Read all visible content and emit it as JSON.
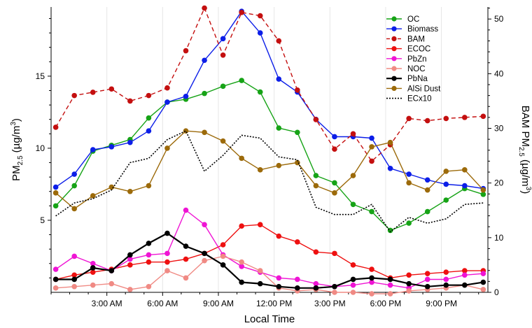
{
  "chart_data": {
    "type": "line",
    "xlabel": "Local Time",
    "ylabel_left": "PM2.5 (µg/m3)",
    "ylabel_right": "BAM PM2.5 (µg/m3)",
    "ylabel_left_parts": [
      "PM",
      "2.5",
      " (µg/m",
      "3",
      ")"
    ],
    "ylabel_right_parts": [
      "BAM PM",
      "2.5",
      " (µg/m",
      "3",
      ")"
    ],
    "xlim": [
      0,
      23.5
    ],
    "ylim_left": [
      0,
      19.8
    ],
    "ylim_right": [
      0,
      52.2
    ],
    "x_ticks": [
      3,
      6,
      9,
      12,
      15,
      18,
      21
    ],
    "x_tick_labels": [
      "3:00 AM",
      "6:00 AM",
      "9:00 AM",
      "12:00 PM",
      "3:00 PM",
      "6:00 PM",
      "9:00 PM"
    ],
    "y_ticks_left": [
      5,
      10,
      15
    ],
    "y_ticks_right": [
      0,
      10,
      20,
      30,
      40,
      50
    ],
    "x_grid": true,
    "legend_position": "top-right",
    "x": [
      0.25,
      1.25,
      2.25,
      3.25,
      4.25,
      5.25,
      6.25,
      7.25,
      8.25,
      9.25,
      10.25,
      11.25,
      12.25,
      13.25,
      14.25,
      15.25,
      16.25,
      17.25,
      18.25,
      19.25,
      20.25,
      21.25,
      22.25,
      23.25
    ],
    "series": [
      {
        "name": "OC",
        "color": "#16a316",
        "style": "solid-markers",
        "axis": "left",
        "values": [
          6.0,
          7.4,
          9.8,
          10.2,
          10.6,
          12.1,
          13.2,
          13.4,
          13.8,
          14.3,
          14.7,
          13.9,
          11.4,
          11.1,
          8.1,
          7.6,
          6.1,
          5.6,
          4.3,
          4.8,
          5.6,
          6.4,
          7.2,
          6.8
        ]
      },
      {
        "name": "Biomass",
        "color": "#0c1ee8",
        "style": "solid-markers",
        "axis": "left",
        "values": [
          7.3,
          8.2,
          9.9,
          10.1,
          10.4,
          11.2,
          13.2,
          13.6,
          16.1,
          17.6,
          19.5,
          18.0,
          14.8,
          13.9,
          12.0,
          10.8,
          10.8,
          10.7,
          8.6,
          8.2,
          7.8,
          7.5,
          7.4,
          7.2
        ]
      },
      {
        "name": "BAM",
        "color": "#c40f0f",
        "style": "dashed-markers",
        "axis": "right",
        "values": [
          30.2,
          36.0,
          36.6,
          37.2,
          35.0,
          36.0,
          37.4,
          44.2,
          52.0,
          43.4,
          51.2,
          50.6,
          46.0,
          37.0,
          31.6,
          26.2,
          29.0,
          24.0,
          27.0,
          31.8,
          31.4,
          31.8,
          32.0,
          32.2
        ]
      },
      {
        "name": "ECOC",
        "color": "#ee1010",
        "style": "solid-markers",
        "axis": "left",
        "values": [
          0.9,
          1.2,
          1.4,
          1.6,
          1.9,
          2.1,
          2.1,
          2.3,
          2.7,
          3.3,
          4.6,
          4.7,
          3.9,
          3.5,
          2.8,
          2.7,
          1.9,
          1.6,
          1.0,
          1.2,
          1.3,
          1.4,
          1.5,
          1.5
        ]
      },
      {
        "name": "PbZn",
        "color": "#ef14d4",
        "style": "solid-markers",
        "axis": "left",
        "values": [
          1.6,
          2.5,
          2.0,
          1.5,
          2.3,
          2.6,
          2.7,
          5.7,
          4.7,
          2.6,
          1.8,
          1.4,
          1.0,
          0.9,
          0.6,
          0.4,
          0.5,
          0.7,
          0.5,
          0.3,
          0.9,
          0.9,
          1.2,
          1.3
        ]
      },
      {
        "name": "NOC",
        "color": "#f08a84",
        "style": "solid-markers",
        "axis": "left",
        "values": [
          0.3,
          0.4,
          0.5,
          0.6,
          0.2,
          0.4,
          1.5,
          1.0,
          2.2,
          2.5,
          2.1,
          1.5,
          0.3,
          0.1,
          0.2,
          0.0,
          0.0,
          -0.1,
          -0.1,
          0.1,
          0.2,
          0.3,
          0.5,
          0.2
        ]
      },
      {
        "name": "PbNa",
        "color": "#000000",
        "style": "solid-markers",
        "axis": "left",
        "values": [
          0.9,
          0.9,
          1.7,
          1.5,
          2.6,
          3.4,
          4.1,
          3.2,
          2.7,
          1.9,
          0.7,
          0.6,
          0.4,
          0.3,
          0.3,
          0.4,
          0.9,
          1.0,
          0.9,
          0.6,
          0.4,
          0.5,
          0.5,
          0.7
        ]
      },
      {
        "name": "AlSi Dust",
        "color": "#9c6a0a",
        "style": "solid-markers",
        "axis": "left",
        "values": [
          6.9,
          5.8,
          6.7,
          7.3,
          7.0,
          7.4,
          10.0,
          11.2,
          11.1,
          10.5,
          9.3,
          8.5,
          8.8,
          9.0,
          7.4,
          6.9,
          8.1,
          10.1,
          10.4,
          7.6,
          7.1,
          8.4,
          8.5,
          7.1
        ]
      },
      {
        "name": "ECx10",
        "color": "#000000",
        "style": "dotted",
        "axis": "left",
        "values": [
          5.3,
          6.2,
          6.5,
          7.1,
          9.0,
          9.3,
          10.6,
          11.2,
          8.4,
          9.5,
          10.9,
          10.7,
          9.4,
          9.2,
          5.9,
          5.4,
          5.4,
          6.1,
          4.2,
          5.2,
          4.8,
          5.1,
          6.1,
          6.2
        ]
      }
    ]
  }
}
